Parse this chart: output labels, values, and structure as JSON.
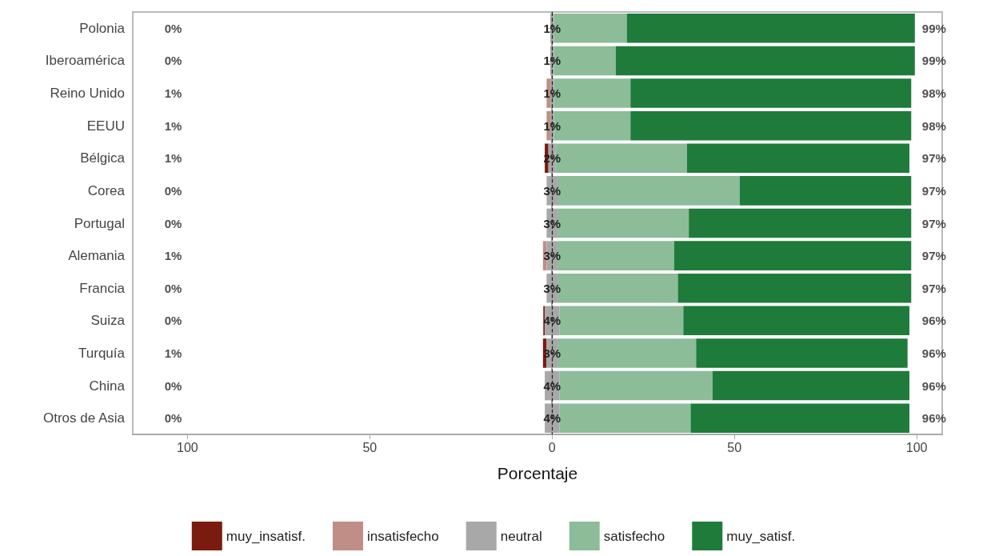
{
  "chart_data": {
    "type": "bar",
    "orientation": "horizontal",
    "xlabel": "Porcentaje",
    "categories": [
      "Polonia",
      "Iberoamérica",
      "Reino Unido",
      "EEUU",
      "Bélgica",
      "Corea",
      "Portugal",
      "Alemania",
      "Francia",
      "Suiza",
      "Turquía",
      "China",
      "Otros de Asia"
    ],
    "series": [
      {
        "name": "muy_insatisf.",
        "color": "#7b1b10",
        "values": [
          null,
          null,
          null,
          null,
          1,
          null,
          null,
          null,
          null,
          0.4,
          1,
          null,
          null
        ],
        "base": [
          null,
          null,
          null,
          null,
          -2,
          null,
          null,
          null,
          null,
          -2.4,
          -2.5,
          null,
          null
        ]
      },
      {
        "name": "insatisfecho",
        "color": "#c08e86",
        "values": [
          null,
          null,
          1,
          1,
          null,
          null,
          null,
          1,
          null,
          null,
          null,
          null,
          null
        ],
        "base": [
          null,
          null,
          -1.5,
          -1.5,
          null,
          null,
          null,
          -2.5,
          null,
          null,
          null,
          null,
          null
        ]
      },
      {
        "name": "neutral",
        "color": "#a8a8a8",
        "values": [
          1,
          1,
          1,
          1,
          2,
          3,
          3,
          3,
          3,
          4,
          3,
          4,
          4
        ],
        "base": [
          -0.5,
          -0.5,
          -0.5,
          -0.5,
          -1,
          -1.5,
          -1.5,
          -1.5,
          -1.5,
          -2,
          -1.5,
          -2,
          -2
        ],
        "value_labels": [
          "1%",
          "1%",
          "1%",
          "1%",
          "2%",
          "3%",
          "3%",
          "3%",
          "3%",
          "4%",
          "3%",
          "4%",
          "4%"
        ]
      },
      {
        "name": "satisfecho",
        "color": "#8cbc98",
        "values": [
          20,
          17,
          21,
          21,
          36,
          50,
          36,
          32,
          33,
          34,
          38,
          42,
          36
        ],
        "base": [
          0.5,
          0.5,
          0.5,
          0.5,
          1,
          1.5,
          1.5,
          1.5,
          1.5,
          2,
          1.5,
          2,
          2
        ]
      },
      {
        "name": "muy_satisf.",
        "color": "#1e7b3a",
        "values": [
          79,
          82,
          77,
          77,
          61,
          47,
          61,
          65,
          64,
          62,
          58,
          54,
          60
        ],
        "base": [
          20.5,
          17.5,
          21.5,
          21.5,
          37,
          51.5,
          37.5,
          33.5,
          34.5,
          36,
          39.5,
          44,
          38
        ]
      }
    ],
    "annotations": [
      "0%",
      "0%",
      "1%",
      "1%",
      "1%",
      "0%",
      "0%",
      "1%",
      "0%",
      "0%",
      "1%",
      "0%",
      "0%",
      "99%",
      "99%",
      "98%",
      "98%",
      "97%",
      "97%",
      "97%",
      "97%",
      "97%",
      "96%",
      "96%",
      "96%",
      "96%"
    ],
    "xlim": [
      -115,
      107
    ],
    "xticks": [
      {
        "value": -100,
        "label": "100"
      },
      {
        "value": -50,
        "label": "50"
      },
      0,
      50,
      100
    ],
    "ref_lines": [
      {
        "axis": "x",
        "value": 0,
        "color": "#222222",
        "line_style": "dashed"
      }
    ],
    "grid": false,
    "legend": "bottom"
  }
}
